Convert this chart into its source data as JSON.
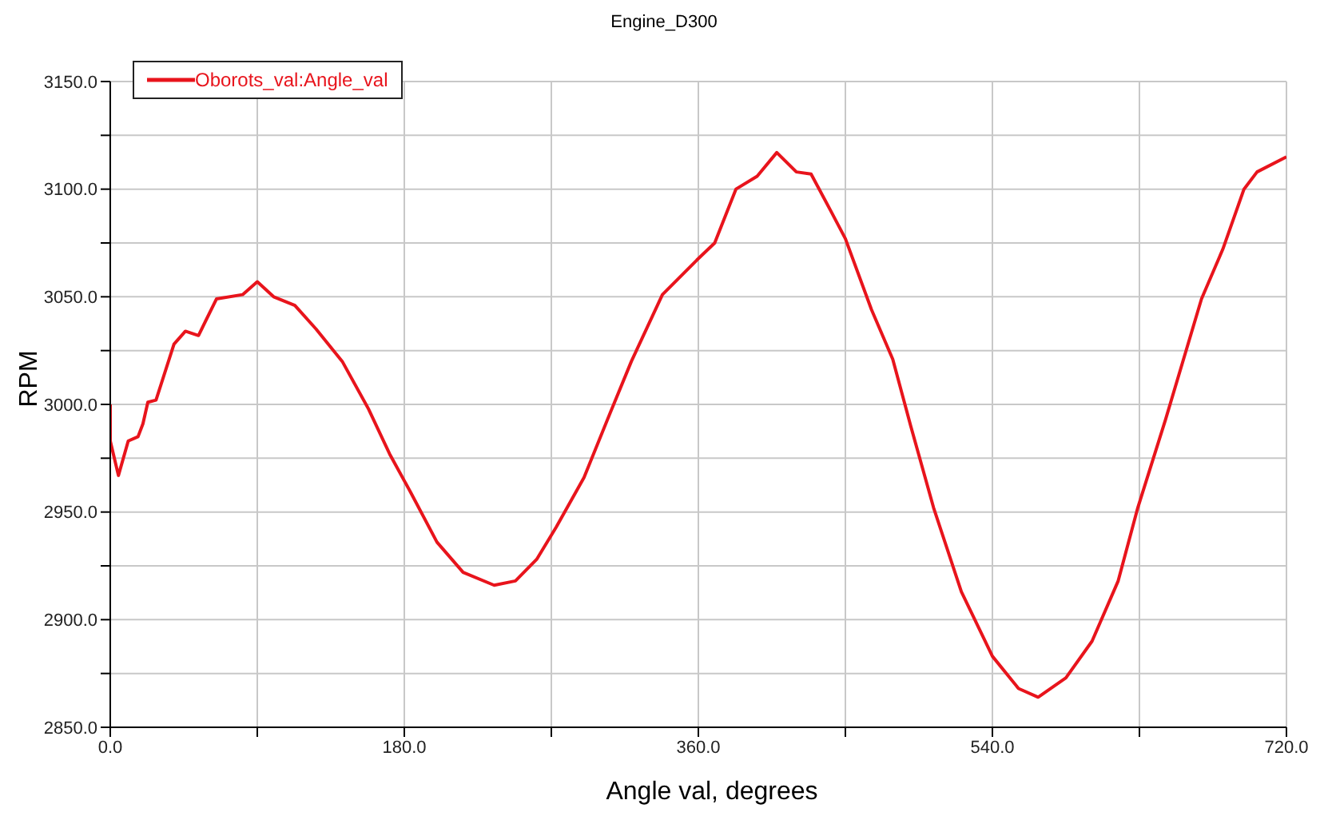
{
  "chart_data": {
    "type": "line",
    "title": "Engine_D300",
    "xlabel": "Angle val, degrees",
    "ylabel": "RPM",
    "xlim": [
      0,
      720
    ],
    "ylim": [
      2850,
      3150
    ],
    "xticks": [
      {
        "value": 0,
        "label": "0.0"
      },
      {
        "value": 90,
        "label": null
      },
      {
        "value": 180,
        "label": "180.0"
      },
      {
        "value": 270,
        "label": null
      },
      {
        "value": 360,
        "label": "360.0"
      },
      {
        "value": 450,
        "label": null
      },
      {
        "value": 540,
        "label": "540.0"
      },
      {
        "value": 630,
        "label": null
      },
      {
        "value": 720,
        "label": "720.0"
      }
    ],
    "yticks": [
      {
        "value": 2850,
        "label": "2850.0"
      },
      {
        "value": 2875,
        "label": null
      },
      {
        "value": 2900,
        "label": "2900.0"
      },
      {
        "value": 2925,
        "label": null
      },
      {
        "value": 2950,
        "label": "2950.0"
      },
      {
        "value": 2975,
        "label": null
      },
      {
        "value": 3000,
        "label": "3000.0"
      },
      {
        "value": 3025,
        "label": null
      },
      {
        "value": 3050,
        "label": "3050.0"
      },
      {
        "value": 3075,
        "label": null
      },
      {
        "value": 3100,
        "label": "3100.0"
      },
      {
        "value": 3125,
        "label": null
      },
      {
        "value": 3150,
        "label": "3150.0"
      }
    ],
    "grid": true,
    "legend": "top left",
    "marker": "none",
    "line_style": "solid",
    "series": [
      {
        "name": "Oborots_val:Angle_val",
        "color": "#e8141c",
        "x": [
          0,
          0,
          5,
          11,
          17,
          20,
          23,
          28,
          39,
          46,
          54,
          65,
          81,
          90,
          100,
          113,
          126,
          142,
          158,
          171,
          184,
          200,
          216,
          235,
          248,
          261,
          273,
          290,
          306,
          319,
          338,
          359,
          370,
          383,
          396,
          408,
          420,
          429,
          441,
          450,
          466,
          479,
          490,
          504,
          521,
          540,
          556,
          568,
          585,
          601,
          617,
          629,
          646,
          668,
          681,
          694,
          702,
          720
        ],
        "values": [
          3000,
          2983,
          2967,
          2983,
          2985,
          2991,
          3001,
          3002,
          3028,
          3034,
          3032,
          3049,
          3051,
          3057,
          3050,
          3046,
          3035,
          3020,
          2998,
          2977,
          2959,
          2936,
          2922,
          2916,
          2918,
          2928,
          2943,
          2966,
          2996,
          3020,
          3051,
          3067,
          3075,
          3100,
          3106,
          3117,
          3108,
          3107,
          3090,
          3077,
          3044,
          3021,
          2990,
          2952,
          2913,
          2883,
          2868,
          2864,
          2873,
          2890,
          2918,
          2952,
          2993,
          3049,
          3072,
          3100,
          3108,
          3115
        ]
      }
    ]
  }
}
